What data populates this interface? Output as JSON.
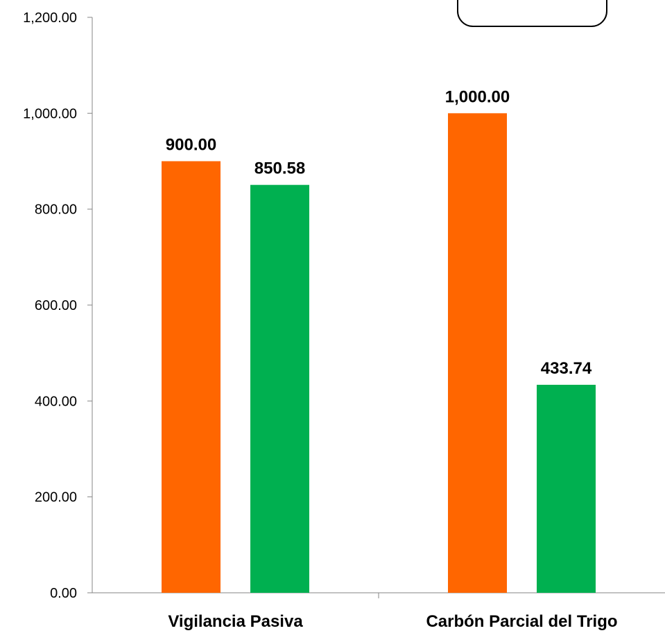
{
  "chart_data": {
    "type": "bar",
    "categories": [
      "Vigilancia Pasiva",
      "Carbón Parcial del Trigo"
    ],
    "series": [
      {
        "values": [
          900.0,
          1000.0
        ],
        "color": "#FF6600"
      },
      {
        "values": [
          850.58,
          433.74
        ],
        "color": "#00B050"
      }
    ],
    "data_labels": [
      [
        "900.00",
        "1,000.00"
      ],
      [
        "850.58",
        "433.74"
      ]
    ],
    "ylim": [
      0,
      1200
    ],
    "yticks": [
      0,
      200,
      400,
      600,
      800,
      1000,
      1200
    ],
    "ytick_labels": [
      "0.00",
      "200.00",
      "400.00",
      "600.00",
      "800.00",
      "1,000.00",
      "1,200.00"
    ],
    "grid": false,
    "legend": "top-right box (cropped, empty)"
  }
}
